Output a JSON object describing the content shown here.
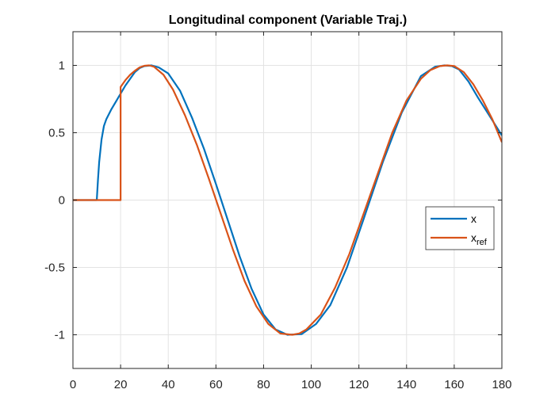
{
  "chart_data": {
    "type": "line",
    "title": "Longitudinal component (Variable Traj.)",
    "xlabel": "",
    "ylabel": "",
    "xlim": [
      0,
      180
    ],
    "ylim": [
      -1.25,
      1.25
    ],
    "xticks": [
      0,
      20,
      40,
      60,
      80,
      100,
      120,
      140,
      160,
      180
    ],
    "yticks": [
      -1,
      -0.5,
      0,
      0.5,
      1
    ],
    "xtick_labels": [
      "0",
      "20",
      "40",
      "60",
      "80",
      "100",
      "120",
      "140",
      "160",
      "180"
    ],
    "ytick_labels": [
      "-1",
      "-0.5",
      "0",
      "0.5",
      "1"
    ],
    "grid": true,
    "legend_position": "center-right",
    "series": [
      {
        "name": "x",
        "color": "#0072BD",
        "x": [
          0,
          10,
          10.5,
          11,
          12,
          13,
          14,
          16,
          18,
          20,
          22,
          24,
          26,
          28,
          30,
          33,
          36,
          40,
          45,
          50,
          55,
          60,
          65,
          70,
          75,
          80,
          85,
          90,
          96,
          102,
          108,
          115,
          122,
          130,
          138,
          146,
          152,
          156,
          159,
          162,
          166,
          170,
          175,
          180
        ],
        "y": [
          0,
          0,
          0.15,
          0.28,
          0.45,
          0.55,
          0.6,
          0.67,
          0.73,
          0.79,
          0.85,
          0.9,
          0.95,
          0.98,
          0.995,
          1.0,
          0.985,
          0.94,
          0.81,
          0.61,
          0.38,
          0.12,
          -0.15,
          -0.42,
          -0.66,
          -0.85,
          -0.96,
          -1.0,
          -0.995,
          -0.92,
          -0.78,
          -0.5,
          -0.14,
          0.28,
          0.65,
          0.92,
          0.99,
          1.0,
          0.995,
          0.97,
          0.88,
          0.76,
          0.62,
          0.48
        ]
      },
      {
        "name": "x_ref",
        "label_main": "x",
        "label_sub": "ref",
        "color": "#D95319",
        "x": [
          0,
          20,
          20,
          22,
          24,
          26,
          28,
          30,
          32,
          34,
          38,
          42,
          47,
          52,
          57,
          62,
          67,
          72,
          77,
          82,
          87,
          92,
          95,
          98,
          104,
          110,
          116,
          122,
          128,
          134,
          140,
          146,
          150,
          154,
          157,
          160,
          164,
          168,
          172,
          176,
          180
        ],
        "y": [
          0,
          0,
          0.84,
          0.89,
          0.93,
          0.96,
          0.985,
          0.997,
          1.0,
          0.99,
          0.93,
          0.82,
          0.63,
          0.41,
          0.16,
          -0.1,
          -0.36,
          -0.6,
          -0.79,
          -0.92,
          -0.99,
          -1.0,
          -0.99,
          -0.96,
          -0.85,
          -0.65,
          -0.4,
          -0.1,
          0.2,
          0.5,
          0.74,
          0.9,
          0.965,
          0.995,
          1.0,
          0.995,
          0.95,
          0.86,
          0.74,
          0.6,
          0.43
        ]
      }
    ]
  }
}
